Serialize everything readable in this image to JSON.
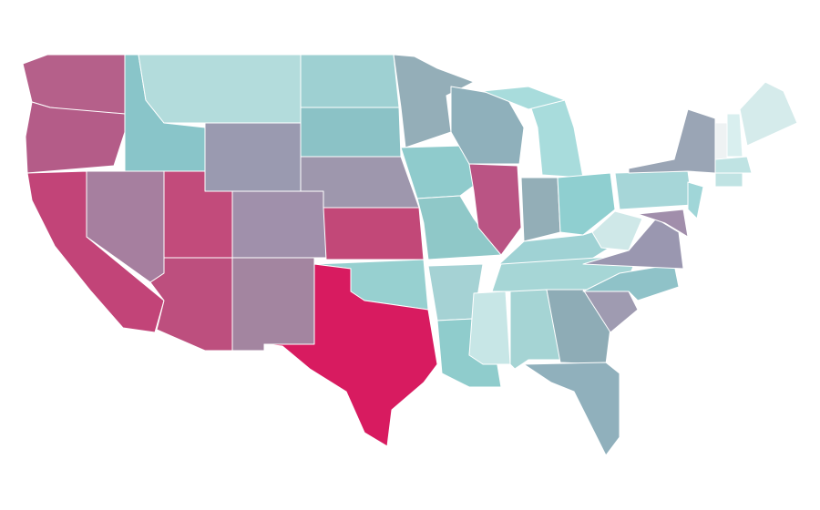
{
  "map": {
    "regions": [
      {
        "color": "#b5608a"
      },
      {
        "color": "#b45c88"
      },
      {
        "color": "#c24478"
      },
      {
        "color": "#a67f9f"
      },
      {
        "color": "#89c5c9"
      },
      {
        "color": "#b3dcdc"
      },
      {
        "color": "#9a9ab0"
      },
      {
        "color": "#c24b7b"
      },
      {
        "color": "#a090ab"
      },
      {
        "color": "#bd4f7e"
      },
      {
        "color": "#a385a0"
      },
      {
        "color": "#9ed0d2"
      },
      {
        "color": "#8bc2c6"
      },
      {
        "color": "#9e97ad"
      },
      {
        "color": "#c24878"
      },
      {
        "color": "#97d0d0"
      },
      {
        "color": "#d81b60"
      },
      {
        "color": "#94aeb8"
      },
      {
        "color": "#8fcbcc"
      },
      {
        "color": "#8fc8c8"
      },
      {
        "color": "#a5d2d4"
      },
      {
        "color": "#8fcccc"
      },
      {
        "color": "#8fb0bb"
      },
      {
        "color": "#ba5484"
      },
      {
        "color": "#a8dcdc"
      },
      {
        "color": "#a8dcdc"
      },
      {
        "color": "#93aeb7"
      },
      {
        "color": "#8fcfd0"
      },
      {
        "color": "#9fd2d4"
      },
      {
        "color": "#a6d6d6"
      },
      {
        "color": "#c7e6e6"
      },
      {
        "color": "#a5d4d4"
      },
      {
        "color": "#8eacb6"
      },
      {
        "color": "#90b0bc"
      },
      {
        "color": "#9f9bb1"
      },
      {
        "color": "#8fc2c8"
      },
      {
        "color": "#9a97b0"
      },
      {
        "color": "#cfe8e8"
      },
      {
        "color": "#a6d6d8"
      },
      {
        "color": "#9aa5b5"
      },
      {
        "color": "#a0d6d8"
      },
      {
        "color": "#a18eab"
      },
      {
        "color": "#eef2f3"
      },
      {
        "color": "#d9efef"
      },
      {
        "color": "#d5ebeb"
      },
      {
        "color": "#bfe3e3"
      },
      {
        "color": "#c0e3e3"
      }
    ]
  }
}
